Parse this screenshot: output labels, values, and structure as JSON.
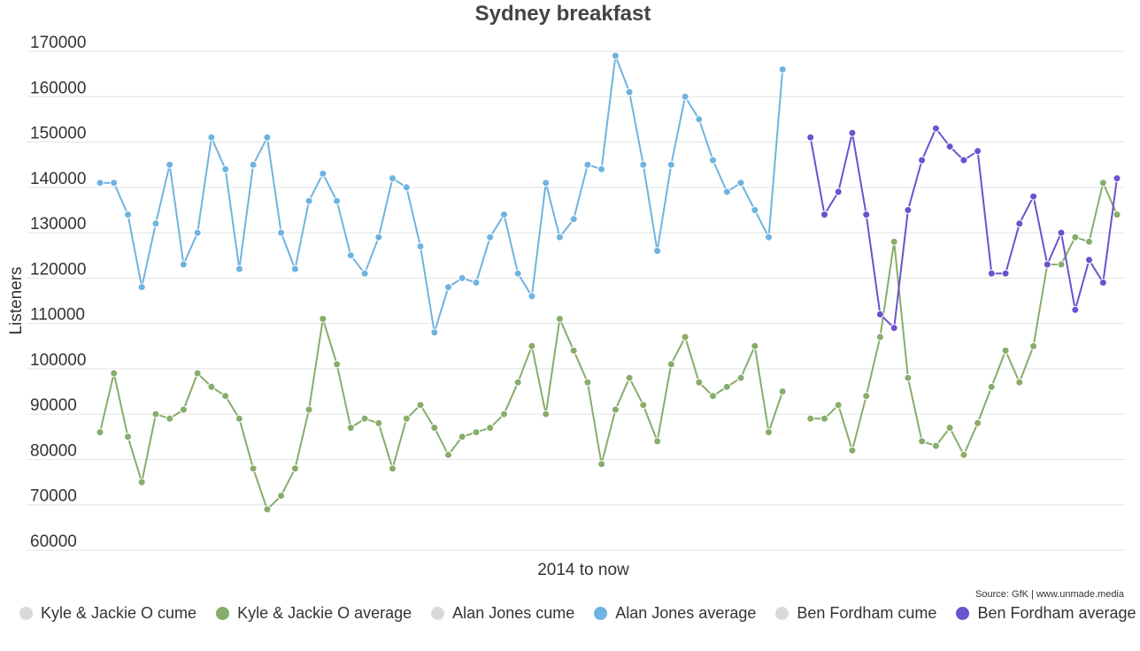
{
  "chart_data": {
    "type": "line",
    "title": "Sydney breakfast",
    "xlabel": "2014 to now",
    "ylabel": "Listeners",
    "ylim": [
      60000,
      170000
    ],
    "yticks": [
      "60000",
      "70000",
      "80000",
      "90000",
      "100000",
      "110000",
      "120000",
      "130000",
      "140000",
      "150000",
      "160000",
      "170000"
    ],
    "grid": true,
    "legend_position": "bottom",
    "source": "Source: GfK | www.unmade.media",
    "x_count": 74,
    "series": [
      {
        "name": "Kyle & Jackie O cume",
        "color": "#d9d9d9",
        "values": []
      },
      {
        "name": "Kyle & Jackie O average",
        "color": "#86ad6a",
        "values": [
          86000,
          99000,
          85000,
          75000,
          90000,
          89000,
          91000,
          99000,
          96000,
          94000,
          89000,
          78000,
          69000,
          72000,
          78000,
          91000,
          111000,
          101000,
          87000,
          89000,
          88000,
          78000,
          89000,
          92000,
          87000,
          81000,
          85000,
          86000,
          87000,
          90000,
          97000,
          105000,
          90000,
          111000,
          104000,
          97000,
          79000,
          91000,
          98000,
          92000,
          84000,
          101000,
          107000,
          97000,
          94000,
          96000,
          98000,
          105000,
          86000,
          95000,
          null,
          89000,
          89000,
          92000,
          82000,
          94000,
          107000,
          128000,
          98000,
          84000,
          83000,
          87000,
          81000,
          88000,
          96000,
          104000,
          97000,
          105000,
          123000,
          123000,
          129000,
          128000,
          141000,
          134000
        ]
      },
      {
        "name": "Alan Jones cume",
        "color": "#d9d9d9",
        "values": []
      },
      {
        "name": "Alan Jones average",
        "color": "#6fb3e0",
        "values": [
          141000,
          141000,
          134000,
          118000,
          132000,
          145000,
          123000,
          130000,
          151000,
          144000,
          122000,
          145000,
          151000,
          130000,
          122000,
          137000,
          143000,
          137000,
          125000,
          121000,
          129000,
          142000,
          140000,
          127000,
          108000,
          118000,
          120000,
          119000,
          129000,
          134000,
          121000,
          116000,
          141000,
          129000,
          133000,
          145000,
          144000,
          169000,
          161000,
          145000,
          126000,
          145000,
          160000,
          155000,
          146000,
          139000,
          141000,
          135000,
          129000,
          166000
        ]
      },
      {
        "name": "Ben Fordham cume",
        "color": "#d9d9d9",
        "values": []
      },
      {
        "name": "Ben Fordham average",
        "color": "#6b52cf",
        "values": [
          null,
          null,
          null,
          null,
          null,
          null,
          null,
          null,
          null,
          null,
          null,
          null,
          null,
          null,
          null,
          null,
          null,
          null,
          null,
          null,
          null,
          null,
          null,
          null,
          null,
          null,
          null,
          null,
          null,
          null,
          null,
          null,
          null,
          null,
          null,
          null,
          null,
          null,
          null,
          null,
          null,
          null,
          null,
          null,
          null,
          null,
          null,
          null,
          null,
          null,
          null,
          151000,
          134000,
          139000,
          152000,
          134000,
          112000,
          109000,
          135000,
          146000,
          153000,
          149000,
          146000,
          148000,
          121000,
          121000,
          132000,
          138000,
          123000,
          130000,
          113000,
          124000,
          119000,
          142000
        ]
      }
    ]
  }
}
